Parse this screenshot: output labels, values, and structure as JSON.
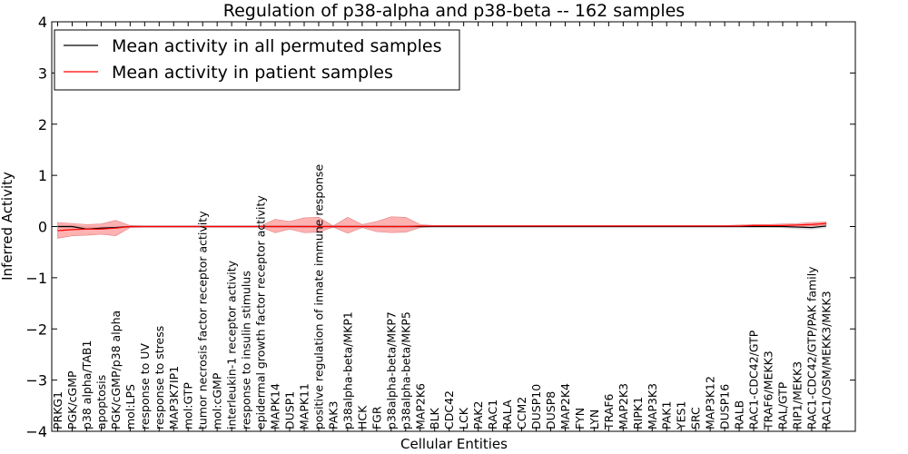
{
  "chart_data": {
    "type": "line",
    "title": "Regulation of p38-alpha and p38-beta -- 162 samples",
    "xlabel": "Cellular Entities",
    "ylabel": "Inferred Activity",
    "ylim": [
      -4,
      4
    ],
    "yticks": [
      -4,
      -3,
      -2,
      -1,
      0,
      1,
      2,
      3,
      4
    ],
    "ytick_labels": [
      "−4",
      "−3",
      "−2",
      "−1",
      "0",
      "1",
      "2",
      "3",
      "4"
    ],
    "grid": false,
    "legend_position": "top-left",
    "categories": [
      "PRKG1",
      "PGK/cGMP",
      "p38 alpha/TAB1",
      "apoptosis",
      "PGK/cGMP/p38 alpha",
      "mol:LPS",
      "response to UV",
      "response to stress",
      "MAP3K7IP1",
      "mol:GTP",
      "tumor necrosis factor receptor activity",
      "mol:cGMP",
      "interleukin-1 receptor activity",
      "response to insulin stimulus",
      "epidermal growth factor receptor activity",
      "MAPK14",
      "DUSP1",
      "MAPK11",
      "positive regulation of innate immune response",
      "PAK3",
      "p38alpha-beta/MKP1",
      "HCK",
      "FGR",
      "p38alpha-beta/MKP7",
      "p38alpha-beta/MKP5",
      "MAP2K6",
      "BLK",
      "CDC42",
      "LCK",
      "PAK2",
      "RAC1",
      "RALA",
      "CCM2",
      "DUSP10",
      "DUSP8",
      "MAP2K4",
      "FYN",
      "LYN",
      "TRAF6",
      "MAP2K3",
      "RIPK1",
      "MAP3K3",
      "PAK1",
      "YES1",
      "SRC",
      "MAP3K12",
      "DUSP16",
      "RALB",
      "RAC1-CDC42/GTP",
      "TRAF6/MEKK3",
      "RAL/GTP",
      "RIP1/MEKK3",
      "RAC1-CDC42/GTP/PAK family",
      "RAC1/OSM/MEKK3/MKK3"
    ],
    "series": [
      {
        "name": "Mean activity in all permuted samples",
        "color": "#000000",
        "values": [
          0.0,
          0.0,
          -0.05,
          -0.03,
          -0.02,
          0.0,
          0.0,
          0.0,
          0.0,
          0.0,
          0.0,
          0.0,
          0.0,
          0.0,
          0.0,
          0.0,
          0.0,
          0.0,
          0.0,
          0.0,
          0.0,
          0.0,
          0.0,
          0.0,
          0.0,
          0.0,
          0.0,
          0.0,
          0.0,
          0.0,
          0.0,
          0.0,
          0.0,
          0.0,
          0.0,
          0.0,
          0.0,
          0.0,
          0.0,
          0.0,
          0.0,
          0.0,
          0.0,
          0.0,
          0.0,
          0.0,
          0.0,
          0.0,
          0.0,
          0.0,
          0.0,
          -0.01,
          -0.02,
          0.01
        ],
        "band_lower": [
          -0.03,
          -0.03,
          -0.06,
          -0.05,
          -0.04,
          -0.02,
          -0.02,
          -0.02,
          -0.02,
          -0.02,
          -0.02,
          -0.02,
          -0.02,
          -0.02,
          -0.02,
          -0.02,
          -0.02,
          -0.02,
          -0.02,
          -0.02,
          -0.02,
          -0.02,
          -0.02,
          -0.02,
          -0.02,
          -0.02,
          -0.02,
          -0.02,
          -0.02,
          -0.02,
          -0.02,
          -0.02,
          -0.02,
          -0.02,
          -0.02,
          -0.02,
          -0.02,
          -0.02,
          -0.02,
          -0.02,
          -0.02,
          -0.02,
          -0.02,
          -0.02,
          -0.02,
          -0.02,
          -0.02,
          -0.02,
          -0.02,
          -0.02,
          -0.03,
          -0.05,
          -0.06,
          -0.03
        ],
        "band_upper": [
          0.03,
          0.03,
          0.0,
          0.0,
          0.0,
          0.02,
          0.02,
          0.02,
          0.02,
          0.02,
          0.02,
          0.02,
          0.02,
          0.02,
          0.02,
          0.02,
          0.02,
          0.02,
          0.02,
          0.02,
          0.02,
          0.02,
          0.02,
          0.02,
          0.02,
          0.02,
          0.02,
          0.02,
          0.02,
          0.02,
          0.02,
          0.02,
          0.02,
          0.02,
          0.02,
          0.02,
          0.02,
          0.02,
          0.02,
          0.02,
          0.02,
          0.02,
          0.02,
          0.02,
          0.02,
          0.02,
          0.02,
          0.02,
          0.02,
          0.02,
          0.03,
          0.02,
          0.02,
          0.04
        ]
      },
      {
        "name": "Mean activity in patient samples",
        "color": "#ff0000",
        "values": [
          -0.08,
          -0.06,
          -0.05,
          -0.05,
          -0.03,
          0.0,
          0.0,
          0.0,
          0.0,
          0.0,
          0.0,
          0.0,
          0.0,
          0.0,
          0.0,
          0.0,
          0.0,
          0.0,
          0.0,
          0.0,
          0.0,
          0.0,
          0.0,
          0.0,
          0.0,
          0.01,
          0.01,
          0.01,
          0.01,
          0.01,
          0.01,
          0.01,
          0.01,
          0.01,
          0.01,
          0.01,
          0.01,
          0.01,
          0.01,
          0.01,
          0.01,
          0.01,
          0.01,
          0.01,
          0.01,
          0.01,
          0.01,
          0.01,
          0.02,
          0.02,
          0.02,
          0.03,
          0.04,
          0.06
        ],
        "band_lower": [
          -0.23,
          -0.18,
          -0.17,
          -0.15,
          -0.18,
          -0.02,
          -0.01,
          -0.01,
          -0.01,
          -0.01,
          -0.01,
          -0.01,
          -0.01,
          -0.01,
          -0.01,
          -0.12,
          -0.05,
          -0.12,
          -0.11,
          -0.01,
          -0.13,
          -0.02,
          -0.1,
          -0.12,
          -0.11,
          -0.02,
          0.0,
          0.0,
          0.0,
          0.0,
          0.0,
          0.0,
          0.0,
          0.0,
          0.0,
          0.0,
          0.0,
          0.0,
          0.0,
          0.0,
          0.0,
          0.0,
          0.0,
          0.0,
          0.0,
          0.0,
          0.0,
          0.0,
          0.0,
          0.0,
          0.0,
          0.0,
          0.01,
          0.03
        ],
        "band_upper": [
          0.08,
          0.06,
          0.04,
          0.05,
          0.12,
          0.02,
          0.01,
          0.01,
          0.01,
          0.01,
          0.01,
          0.01,
          0.01,
          0.01,
          0.01,
          0.14,
          0.1,
          0.17,
          0.18,
          0.01,
          0.18,
          0.04,
          0.1,
          0.19,
          0.18,
          0.04,
          0.02,
          0.02,
          0.02,
          0.02,
          0.02,
          0.02,
          0.02,
          0.02,
          0.02,
          0.02,
          0.02,
          0.02,
          0.02,
          0.02,
          0.02,
          0.02,
          0.02,
          0.02,
          0.02,
          0.02,
          0.02,
          0.03,
          0.04,
          0.04,
          0.05,
          0.06,
          0.08,
          0.09
        ]
      }
    ]
  }
}
